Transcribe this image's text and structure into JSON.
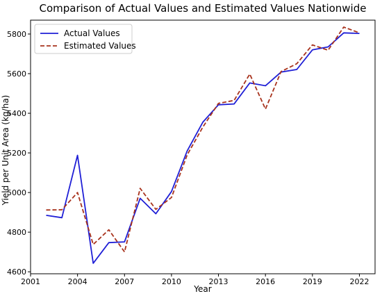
{
  "chart_data": {
    "type": "line",
    "title": "Comparison of Actual Values and Estimated Values Nationwide",
    "xlabel": "Year",
    "ylabel": "Yield per Unit Area (kg/ha)",
    "xlim": [
      2001,
      2023
    ],
    "ylim": [
      4590,
      5870
    ],
    "xticks": [
      2001,
      2004,
      2007,
      2010,
      2013,
      2016,
      2019,
      2022
    ],
    "yticks": [
      4600,
      4800,
      5000,
      5200,
      5400,
      5600,
      5800
    ],
    "legend_position": "top-left",
    "x": [
      2002,
      2003,
      2004,
      2005,
      2006,
      2007,
      2008,
      2009,
      2010,
      2011,
      2012,
      2013,
      2014,
      2015,
      2016,
      2017,
      2018,
      2019,
      2020,
      2021,
      2022
    ],
    "series": [
      {
        "name": "Actual Values",
        "color": "#1f1fd6",
        "style": "solid",
        "values": [
          4885,
          4873,
          5188,
          4643,
          4747,
          4751,
          4971,
          4893,
          5005,
          5210,
          5355,
          5443,
          5447,
          5553,
          5539,
          5608,
          5621,
          5720,
          5735,
          5806,
          5803
        ]
      },
      {
        "name": "Estimated Values",
        "color": "#a8321c",
        "style": "dashed",
        "values": [
          4912,
          4913,
          5000,
          4738,
          4812,
          4700,
          5021,
          4915,
          4975,
          5190,
          5330,
          5450,
          5465,
          5598,
          5421,
          5611,
          5650,
          5745,
          5718,
          5835,
          5806
        ]
      }
    ]
  }
}
